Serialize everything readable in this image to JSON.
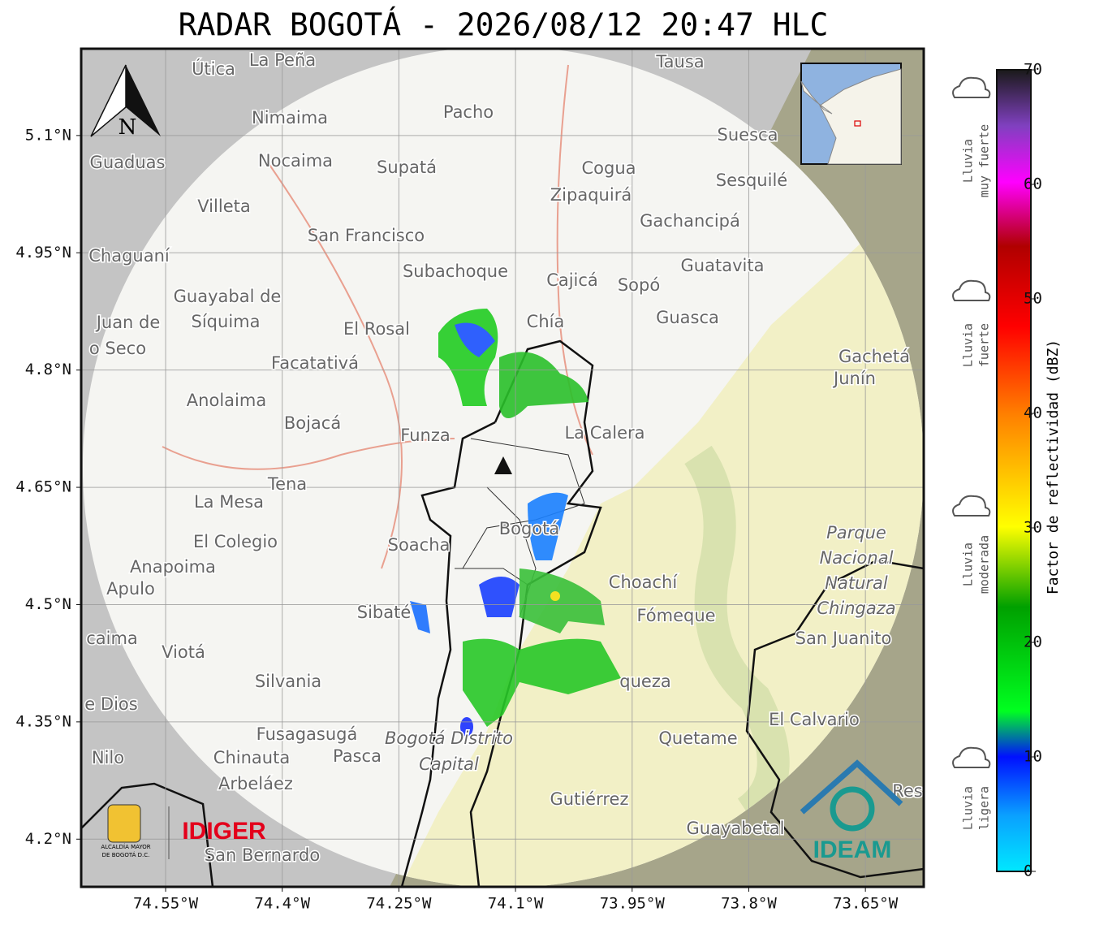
{
  "title": "RADAR BOGOTÁ - 2026/08/12 20:47 HLC",
  "map": {
    "xlim": [
      -74.6586,
      -73.575
    ],
    "ylim": [
      4.139,
      5.211
    ],
    "xticks": [
      {
        "value": -74.55,
        "label": "74.55°W"
      },
      {
        "value": -74.4,
        "label": "74.4°W"
      },
      {
        "value": -74.25,
        "label": "74.25°W"
      },
      {
        "value": -74.1,
        "label": "74.1°W"
      },
      {
        "value": -73.95,
        "label": "73.95°W"
      },
      {
        "value": -73.8,
        "label": "73.8°W"
      },
      {
        "value": -73.65,
        "label": "73.65°W"
      }
    ],
    "yticks": [
      {
        "value": 4.2,
        "label": "4.2°N"
      },
      {
        "value": 4.35,
        "label": "4.35°N"
      },
      {
        "value": 4.5,
        "label": "4.5°N"
      },
      {
        "value": 4.65,
        "label": "4.65°N"
      },
      {
        "value": 4.8,
        "label": "4.8°N"
      },
      {
        "value": 4.95,
        "label": "4.95°N"
      },
      {
        "value": 5.1,
        "label": "5.1°N"
      }
    ],
    "compass": "N",
    "places": [
      "La Peña",
      "Útica",
      "Tausa",
      "Pacho",
      "Nimaima",
      "Suesca",
      "Guaduas",
      "Nocaima",
      "Supatá",
      "Cogua",
      "Sesquilé",
      "Zipaquirá",
      "Villeta",
      "Gachancipá",
      "San Francisco",
      "Chaguaní",
      "Guatavita",
      "Subachoque",
      "Cajicá",
      "Sopó",
      "Guayabal de",
      "Síquima",
      "Juan de",
      "Guasca",
      "Chía",
      "El Rosal",
      "o Seco",
      "Gachetá",
      "Facatativá",
      "Junín",
      "Anolaima",
      "Bojacá",
      "Funza",
      "La Calera",
      "Tena",
      "La Mesa",
      "Bogotá",
      "El Colegio",
      "Soacha",
      "Anapoima",
      "Choachí",
      "Apulo",
      "Sibaté",
      "Fómeque",
      "San Juanito",
      "caima",
      "Viotá",
      "Silvania",
      "queza",
      "e Dios",
      "El Calvario",
      "Fusagasugá",
      "Quetame",
      "Nilo",
      "Chinauta",
      "Pasca",
      "Arbeláez",
      "Gutiérrez",
      "Res",
      "Guayabetal",
      "San Bernardo"
    ],
    "park": [
      "Parque",
      "Nacional",
      "Natural",
      "Chingaza"
    ],
    "district": [
      "Bogotá Distrito",
      "Capital"
    ]
  },
  "colorbar": {
    "label": "Factor de reflectividad (dBZ)",
    "lim": [
      0,
      70
    ],
    "ticks": [
      0,
      10,
      20,
      30,
      40,
      50,
      60,
      70
    ]
  },
  "intensity": [
    [
      "Lluvia",
      "ligera"
    ],
    [
      "Lluvia",
      "moderada"
    ],
    [
      "Lluvia",
      "fuerte"
    ],
    [
      "Lluvia",
      "muy fuerte"
    ]
  ],
  "logos": {
    "idiger": "IDIGER",
    "alcaldia": [
      "ALCALDÍA MAYOR",
      "DE BOGOTÁ D.C."
    ],
    "ideam": "IDEAM"
  }
}
